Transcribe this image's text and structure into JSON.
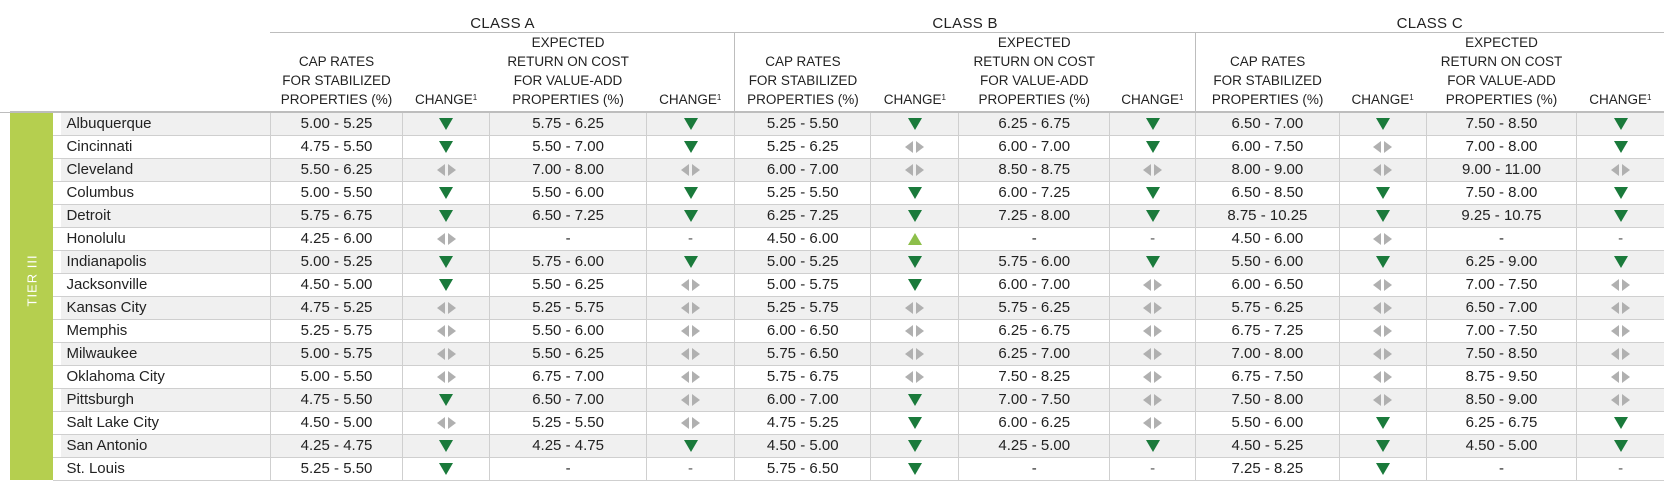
{
  "classes": [
    "CLASS A",
    "CLASS B",
    "CLASS C"
  ],
  "headers": {
    "cap_rates": "CAP RATES\nFOR STABILIZED\nPROPERTIES (%)",
    "change": "CHANGE",
    "change_note": "1",
    "expected": "EXPECTED\nRETURN ON COST\nFOR VALUE-ADD\nPROPERTIES (%)"
  },
  "tier_label": "TIER III",
  "colors": {
    "tier_band": "#b5cf4f",
    "down_icon": "#1a7a3b",
    "up_icon": "#8dbf4a",
    "flat_icon": "#b0b0b0",
    "row_shade": "#f0f0f0"
  },
  "rows": [
    {
      "city": "Albuquerque",
      "cells": [
        "5.00 - 5.25",
        "down",
        "5.75 - 6.25",
        "down",
        "5.25 - 5.50",
        "down",
        "6.25 - 6.75",
        "down",
        "6.50 - 7.00",
        "down",
        "7.50 - 8.50",
        "down"
      ]
    },
    {
      "city": "Cincinnati",
      "cells": [
        "4.75 - 5.50",
        "down",
        "5.50 - 7.00",
        "down",
        "5.25 - 6.25",
        "flat",
        "6.00 - 7.00",
        "down",
        "6.00 - 7.50",
        "flat",
        "7.00 - 8.00",
        "down"
      ]
    },
    {
      "city": "Cleveland",
      "cells": [
        "5.50 - 6.25",
        "flat",
        "7.00 - 8.00",
        "flat",
        "6.00 - 7.00",
        "flat",
        "8.50 - 8.75",
        "flat",
        "8.00 - 9.00",
        "flat",
        "9.00 - 11.00",
        "flat"
      ]
    },
    {
      "city": "Columbus",
      "cells": [
        "5.00 - 5.50",
        "down",
        "5.50 - 6.00",
        "down",
        "5.25 - 5.50",
        "down",
        "6.00 - 7.25",
        "down",
        "6.50 - 8.50",
        "down",
        "7.50 - 8.00",
        "down"
      ]
    },
    {
      "city": "Detroit",
      "cells": [
        "5.75 - 6.75",
        "down",
        "6.50 - 7.25",
        "down",
        "6.25 - 7.25",
        "down",
        "7.25 - 8.00",
        "down",
        "8.75 - 10.25",
        "down",
        "9.25 - 10.75",
        "down"
      ]
    },
    {
      "city": "Honolulu",
      "cells": [
        "4.25 - 6.00",
        "flat",
        "-",
        "-",
        "4.50 - 6.00",
        "up",
        "-",
        "-",
        "4.50 - 6.00",
        "flat",
        "-",
        "-"
      ]
    },
    {
      "city": "Indianapolis",
      "cells": [
        "5.00 - 5.25",
        "down",
        "5.75 - 6.00",
        "down",
        "5.00 - 5.25",
        "down",
        "5.75 - 6.00",
        "down",
        "5.50 - 6.00",
        "down",
        "6.25 - 9.00",
        "down"
      ]
    },
    {
      "city": "Jacksonville",
      "cells": [
        "4.50 - 5.00",
        "down",
        "5.50 - 6.25",
        "flat",
        "5.00 - 5.75",
        "down",
        "6.00 - 7.00",
        "flat",
        "6.00 - 6.50",
        "flat",
        "7.00 - 7.50",
        "flat"
      ]
    },
    {
      "city": "Kansas City",
      "cells": [
        "4.75 - 5.25",
        "flat",
        "5.25 - 5.75",
        "flat",
        "5.25 - 5.75",
        "flat",
        "5.75 - 6.25",
        "flat",
        "5.75 - 6.25",
        "flat",
        "6.50 - 7.00",
        "flat"
      ]
    },
    {
      "city": "Memphis",
      "cells": [
        "5.25 - 5.75",
        "flat",
        "5.50 - 6.00",
        "flat",
        "6.00 - 6.50",
        "flat",
        "6.25 - 6.75",
        "flat",
        "6.75 - 7.25",
        "flat",
        "7.00 - 7.50",
        "flat"
      ]
    },
    {
      "city": "Milwaukee",
      "cells": [
        "5.00 - 5.75",
        "flat",
        "5.50 - 6.25",
        "flat",
        "5.75 - 6.50",
        "flat",
        "6.25 - 7.00",
        "flat",
        "7.00 - 8.00",
        "flat",
        "7.50 - 8.50",
        "flat"
      ]
    },
    {
      "city": "Oklahoma City",
      "cells": [
        "5.00 - 5.50",
        "flat",
        "6.75 - 7.00",
        "flat",
        "5.75 - 6.75",
        "flat",
        "7.50 - 8.25",
        "flat",
        "6.75 - 7.50",
        "flat",
        "8.75 - 9.50",
        "flat"
      ]
    },
    {
      "city": "Pittsburgh",
      "cells": [
        "4.75 - 5.50",
        "down",
        "6.50 - 7.00",
        "flat",
        "6.00 - 7.00",
        "down",
        "7.00 - 7.50",
        "flat",
        "7.50 - 8.00",
        "flat",
        "8.50 - 9.00",
        "flat"
      ]
    },
    {
      "city": "Salt Lake City",
      "cells": [
        "4.50 - 5.00",
        "flat",
        "5.25 - 5.50",
        "flat",
        "4.75 - 5.25",
        "down",
        "6.00 - 6.25",
        "flat",
        "5.50 - 6.00",
        "down",
        "6.25 - 6.75",
        "down"
      ]
    },
    {
      "city": "San Antonio",
      "cells": [
        "4.25 - 4.75",
        "down",
        "4.25 - 4.75",
        "down",
        "4.50 - 5.00",
        "down",
        "4.25 - 5.00",
        "down",
        "4.50 - 5.25",
        "down",
        "4.50 - 5.00",
        "down"
      ]
    },
    {
      "city": "St. Louis",
      "cells": [
        "5.25 - 5.50",
        "down",
        "-",
        "-",
        "5.75 - 6.50",
        "down",
        "-",
        "-",
        "7.25 - 8.25",
        "down",
        "-",
        "-"
      ]
    }
  ]
}
